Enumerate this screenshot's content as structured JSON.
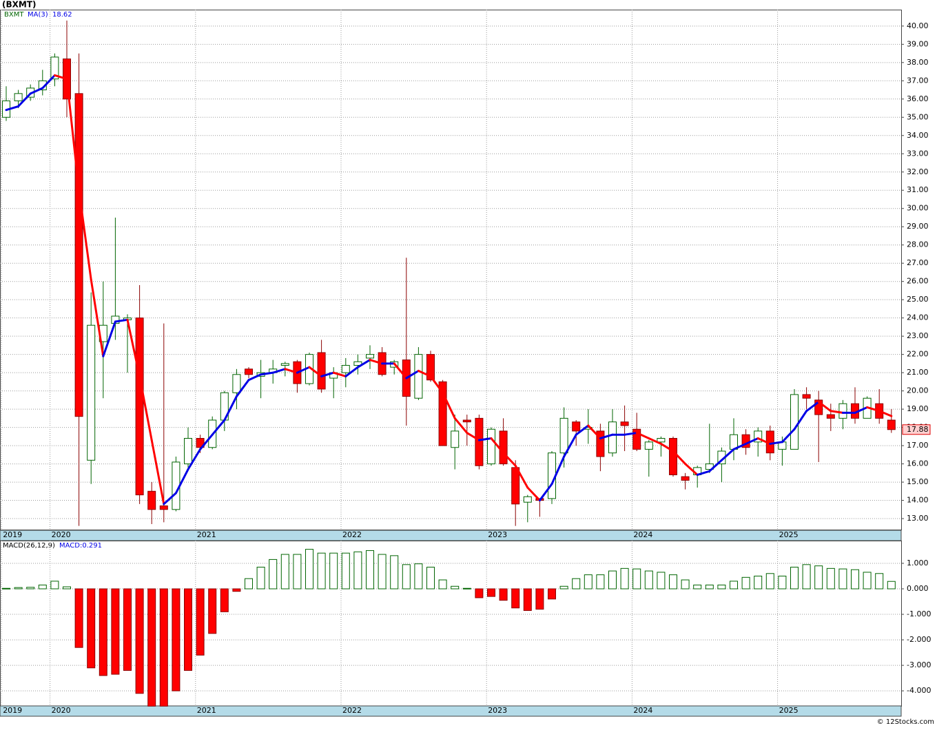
{
  "chart_data": [
    {
      "type": "candlestick",
      "title": "(BXMT)",
      "symbol": "BXMT",
      "categories": [
        "2019",
        null,
        null,
        null,
        "2020",
        null,
        null,
        null,
        null,
        null,
        null,
        null,
        null,
        null,
        null,
        null,
        "2021",
        null,
        null,
        null,
        null,
        null,
        null,
        null,
        null,
        null,
        null,
        null,
        "2022",
        null,
        null,
        null,
        null,
        null,
        null,
        null,
        null,
        null,
        null,
        null,
        "2023",
        null,
        null,
        null,
        null,
        null,
        null,
        null,
        null,
        null,
        null,
        null,
        "2024",
        null,
        null,
        null,
        null,
        null,
        null,
        null,
        null,
        null,
        null,
        null,
        "2025",
        null,
        null,
        null,
        null,
        null,
        null,
        null,
        null,
        null
      ],
      "open": [
        35.0,
        35.9,
        36.1,
        36.5,
        37.1,
        38.2,
        36.3,
        16.2,
        22.7,
        23.7,
        23.9,
        24.0,
        14.5,
        13.7,
        13.5,
        16.0,
        17.4,
        16.9,
        18.4,
        19.9,
        21.2,
        20.8,
        21.0,
        21.4,
        21.6,
        20.4,
        22.1,
        20.7,
        21.0,
        21.4,
        21.8,
        22.1,
        21.3,
        21.7,
        19.6,
        22.0,
        20.5,
        16.9,
        18.4,
        18.5,
        16.0,
        17.8,
        15.8,
        13.9,
        14.1,
        14.1,
        16.6,
        18.3,
        17.9,
        17.8,
        16.6,
        18.3,
        17.9,
        16.8,
        17.2,
        17.4,
        15.3,
        15.4,
        15.7,
        16.0,
        16.8,
        17.6,
        17.2,
        17.8,
        16.8,
        16.8,
        19.8,
        19.5,
        18.7,
        18.5,
        19.3,
        18.5,
        19.3,
        18.4
      ],
      "high": [
        36.7,
        36.5,
        36.8,
        37.6,
        38.5,
        40.3,
        38.5,
        25.4,
        26.0,
        29.5,
        24.2,
        25.8,
        15.0,
        23.7,
        16.4,
        18.0,
        17.6,
        18.6,
        20.0,
        21.2,
        21.3,
        21.7,
        21.7,
        21.6,
        21.7,
        22.1,
        22.8,
        21.3,
        21.8,
        22.0,
        22.5,
        22.4,
        21.7,
        27.3,
        22.4,
        22.2,
        20.6,
        18.7,
        18.7,
        18.7,
        18.0,
        18.5,
        16.2,
        14.3,
        14.1,
        16.7,
        19.1,
        18.4,
        19.0,
        18.2,
        19.0,
        19.2,
        18.8,
        17.3,
        17.5,
        17.5,
        15.5,
        15.9,
        18.2,
        16.9,
        18.5,
        17.9,
        18.0,
        18.1,
        17.5,
        20.1,
        20.2,
        20.0,
        19.3,
        19.5,
        20.2,
        19.7,
        20.1,
        19.0
      ],
      "low": [
        34.8,
        35.5,
        35.9,
        36.2,
        36.7,
        35.0,
        12.6,
        14.9,
        19.6,
        22.8,
        21.0,
        13.8,
        12.7,
        12.8,
        13.4,
        15.8,
        16.6,
        16.8,
        17.8,
        19.0,
        20.7,
        19.6,
        20.4,
        20.8,
        19.9,
        20.3,
        19.9,
        19.6,
        20.2,
        20.9,
        21.2,
        20.8,
        20.9,
        18.1,
        19.5,
        20.5,
        17.0,
        15.7,
        17.0,
        15.7,
        15.9,
        15.9,
        12.6,
        12.8,
        13.1,
        13.8,
        15.8,
        17.0,
        17.1,
        15.6,
        16.4,
        16.7,
        16.7,
        15.3,
        16.4,
        15.3,
        14.6,
        14.7,
        15.5,
        15.0,
        16.2,
        16.5,
        16.4,
        16.2,
        15.9,
        16.8,
        19.0,
        16.1,
        17.8,
        17.9,
        18.2,
        18.5,
        18.2,
        17.7
      ],
      "close": [
        35.9,
        36.3,
        36.6,
        37.0,
        38.3,
        36.0,
        18.6,
        23.6,
        23.6,
        24.1,
        24.0,
        14.3,
        13.5,
        13.5,
        16.1,
        17.4,
        16.9,
        18.4,
        19.9,
        20.9,
        20.9,
        21.0,
        21.2,
        21.5,
        20.4,
        22.0,
        20.1,
        21.0,
        21.4,
        21.6,
        22.0,
        20.9,
        21.6,
        19.7,
        22.0,
        20.6,
        17.0,
        17.8,
        18.3,
        15.9,
        17.9,
        16.0,
        13.8,
        14.2,
        14.0,
        16.6,
        18.5,
        17.8,
        18.0,
        16.4,
        18.3,
        18.1,
        16.8,
        17.2,
        17.4,
        15.4,
        15.1,
        15.8,
        16.0,
        16.7,
        17.6,
        16.9,
        17.8,
        16.6,
        17.2,
        19.8,
        19.6,
        18.7,
        18.5,
        19.3,
        18.5,
        19.6,
        18.5,
        17.88
      ],
      "ma": {
        "name": "MA(3)",
        "up_color": "#0000e6",
        "down_color": "#ff0000",
        "values": [
          35.4,
          35.6,
          36.3,
          36.6,
          37.3,
          37.1,
          31.0,
          26.1,
          21.9,
          23.8,
          23.9,
          20.8,
          17.3,
          13.8,
          14.4,
          15.7,
          16.8,
          17.6,
          18.4,
          19.7,
          20.6,
          20.9,
          21.0,
          21.2,
          21.0,
          21.3,
          20.8,
          21.0,
          20.8,
          21.3,
          21.7,
          21.5,
          21.5,
          20.7,
          21.1,
          20.8,
          19.9,
          18.5,
          17.7,
          17.3,
          17.4,
          16.6,
          15.9,
          14.7,
          14.0,
          14.9,
          16.4,
          17.6,
          18.1,
          17.4,
          17.6,
          17.6,
          17.7,
          17.4,
          17.1,
          16.7,
          16.0,
          15.4,
          15.6,
          16.2,
          16.8,
          17.1,
          17.4,
          17.1,
          17.2,
          17.9,
          18.9,
          19.4,
          18.9,
          18.8,
          18.8,
          19.1,
          18.9,
          18.62
        ]
      },
      "up_color": "#ffffff",
      "up_edge": "#006400",
      "down_color": "#ff0000",
      "down_edge": "#8b0000",
      "ylim": [
        12.36,
        40.9
      ],
      "yticks": [
        {
          "value": 13,
          "label": "13.00"
        },
        {
          "value": 14,
          "label": "14.00"
        },
        {
          "value": 15,
          "label": "15.00"
        },
        {
          "value": 16,
          "label": "16.00"
        },
        {
          "value": 17,
          "label": "17.00"
        },
        {
          "value": 18,
          "label": "18.00"
        },
        {
          "value": 19,
          "label": "19.00"
        },
        {
          "value": 20,
          "label": "20.00"
        },
        {
          "value": 21,
          "label": "21.00"
        },
        {
          "value": 22,
          "label": "22.00"
        },
        {
          "value": 23,
          "label": "23.00"
        },
        {
          "value": 24,
          "label": "24.00"
        },
        {
          "value": 25,
          "label": "25.00"
        },
        {
          "value": 26,
          "label": "26.00"
        },
        {
          "value": 27,
          "label": "27.00"
        },
        {
          "value": 28,
          "label": "28.00"
        },
        {
          "value": 29,
          "label": "29.00"
        },
        {
          "value": 30,
          "label": "30.00"
        },
        {
          "value": 31,
          "label": "31.00"
        },
        {
          "value": 32,
          "label": "32.00"
        },
        {
          "value": 33,
          "label": "33.00"
        },
        {
          "value": 34,
          "label": "34.00"
        },
        {
          "value": 35,
          "label": "35.00"
        },
        {
          "value": 36,
          "label": "36.00"
        },
        {
          "value": 37,
          "label": "37.00"
        },
        {
          "value": 38,
          "label": "38.00"
        },
        {
          "value": 39,
          "label": "39.00"
        },
        {
          "value": 40,
          "label": "40.00"
        }
      ],
      "grid": true
    },
    {
      "type": "bar",
      "title": "MACD(26,12,9)",
      "legend": "MACD:0.291",
      "values": [
        0.02,
        0.05,
        0.06,
        0.15,
        0.3,
        0.08,
        -2.3,
        -3.1,
        -3.4,
        -3.35,
        -3.2,
        -4.1,
        -4.6,
        -4.6,
        -4.0,
        -3.2,
        -2.6,
        -1.75,
        -0.9,
        -0.1,
        0.4,
        0.85,
        1.15,
        1.35,
        1.35,
        1.55,
        1.4,
        1.4,
        1.4,
        1.45,
        1.5,
        1.35,
        1.3,
        0.95,
        0.98,
        0.85,
        0.35,
        0.1,
        0.02,
        -0.35,
        -0.3,
        -0.45,
        -0.75,
        -0.85,
        -0.8,
        -0.4,
        0.1,
        0.4,
        0.55,
        0.55,
        0.7,
        0.8,
        0.78,
        0.7,
        0.65,
        0.55,
        0.35,
        0.15,
        0.15,
        0.15,
        0.3,
        0.45,
        0.5,
        0.6,
        0.5,
        0.85,
        0.95,
        0.9,
        0.8,
        0.78,
        0.75,
        0.65,
        0.6,
        0.291
      ],
      "pos_color": "#ffffff",
      "pos_edge": "#006400",
      "neg_color": "#ff0000",
      "neg_edge": "#8b0000",
      "ylim": [
        -4.59,
        1.89
      ],
      "yticks": [
        {
          "value": 1,
          "label": "1.000"
        },
        {
          "value": 0,
          "label": "0.000"
        },
        {
          "value": -1,
          "label": "-1.000"
        },
        {
          "value": -2,
          "label": "-2.000"
        },
        {
          "value": -3,
          "label": "-3.000"
        },
        {
          "value": -4,
          "label": "-4.000"
        }
      ],
      "grid": true
    }
  ],
  "footer": "© 12Stocks.com"
}
